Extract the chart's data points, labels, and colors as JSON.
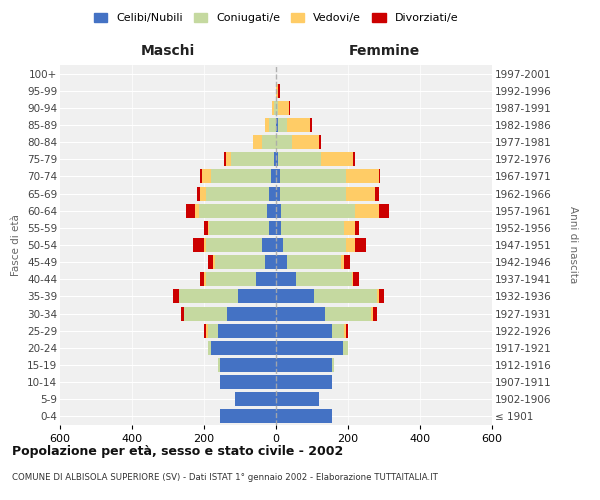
{
  "age_groups": [
    "100+",
    "95-99",
    "90-94",
    "85-89",
    "80-84",
    "75-79",
    "70-74",
    "65-69",
    "60-64",
    "55-59",
    "50-54",
    "45-49",
    "40-44",
    "35-39",
    "30-34",
    "25-29",
    "20-24",
    "15-19",
    "10-14",
    "5-9",
    "0-4"
  ],
  "birth_years": [
    "≤ 1901",
    "1902-1906",
    "1907-1911",
    "1912-1916",
    "1917-1921",
    "1922-1926",
    "1927-1931",
    "1932-1936",
    "1937-1941",
    "1942-1946",
    "1947-1951",
    "1952-1956",
    "1957-1961",
    "1962-1966",
    "1967-1971",
    "1972-1976",
    "1977-1981",
    "1982-1986",
    "1987-1991",
    "1992-1996",
    "1997-2001"
  ],
  "maschi": {
    "celibi": [
      0,
      0,
      0,
      0,
      0,
      5,
      15,
      20,
      25,
      20,
      40,
      30,
      55,
      105,
      135,
      160,
      180,
      155,
      155,
      115,
      155
    ],
    "coniugati": [
      0,
      0,
      5,
      20,
      40,
      120,
      165,
      175,
      190,
      165,
      155,
      140,
      140,
      165,
      120,
      30,
      10,
      5,
      0,
      0,
      0
    ],
    "vedovi": [
      0,
      0,
      5,
      10,
      25,
      15,
      25,
      15,
      10,
      5,
      5,
      5,
      5,
      0,
      0,
      5,
      0,
      0,
      0,
      0,
      0
    ],
    "divorziati": [
      0,
      0,
      0,
      0,
      0,
      5,
      5,
      10,
      25,
      10,
      30,
      15,
      10,
      15,
      10,
      5,
      0,
      0,
      0,
      0,
      0
    ]
  },
  "femmine": {
    "nubili": [
      0,
      0,
      0,
      5,
      0,
      5,
      10,
      10,
      15,
      15,
      20,
      30,
      55,
      105,
      135,
      155,
      185,
      155,
      155,
      120,
      155
    ],
    "coniugate": [
      0,
      0,
      5,
      25,
      45,
      120,
      185,
      185,
      205,
      175,
      175,
      150,
      155,
      175,
      130,
      35,
      15,
      5,
      0,
      0,
      0
    ],
    "vedove": [
      0,
      5,
      30,
      65,
      75,
      90,
      90,
      80,
      65,
      30,
      25,
      10,
      5,
      5,
      5,
      5,
      0,
      0,
      0,
      0,
      0
    ],
    "divorziate": [
      0,
      5,
      5,
      5,
      5,
      5,
      5,
      10,
      30,
      10,
      30,
      15,
      15,
      15,
      10,
      5,
      0,
      0,
      0,
      0,
      0
    ]
  },
  "colors": {
    "celibi_nubili": "#4472C4",
    "coniugati": "#C5D9A0",
    "vedovi": "#FFCC66",
    "divorziati": "#CC0000"
  },
  "title": "Popolazione per età, sesso e stato civile - 2002",
  "subtitle": "COMUNE DI ALBISOLA SUPERIORE (SV) - Dati ISTAT 1° gennaio 2002 - Elaborazione TUTTAITALIA.IT",
  "xlabel_left": "Maschi",
  "xlabel_right": "Femmine",
  "ylabel_left": "Fasce di età",
  "ylabel_right": "Anni di nascita",
  "xlim": 600,
  "legend_labels": [
    "Celibi/Nubili",
    "Coniugati/e",
    "Vedovi/e",
    "Divorziati/e"
  ],
  "bg_color": "#FFFFFF",
  "grid_color": "#CCCCCC",
  "bar_height": 0.82
}
